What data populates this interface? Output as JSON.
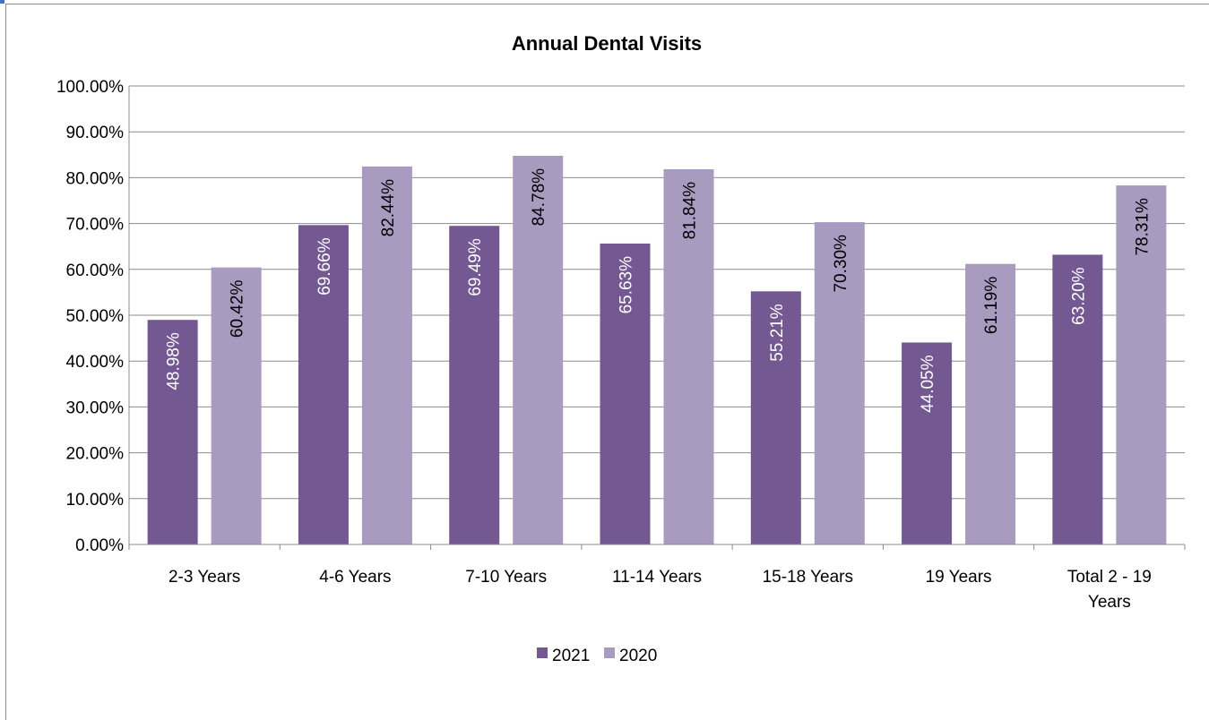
{
  "chart_data": {
    "type": "bar",
    "title": "Annual Dental Visits",
    "categories": [
      [
        "2-3 Years"
      ],
      [
        "4-6 Years"
      ],
      [
        "7-10 Years"
      ],
      [
        "11-14 Years"
      ],
      [
        "15-18 Years"
      ],
      [
        "19 Years"
      ],
      [
        "Total 2 - 19",
        "Years"
      ]
    ],
    "series": [
      {
        "name": "2021",
        "color": "#735891",
        "label_color": "#ffffff",
        "values": [
          48.98,
          69.66,
          69.49,
          65.63,
          55.21,
          44.05,
          63.2
        ],
        "labels": [
          "48.98%",
          "69.66%",
          "69.49%",
          "65.63%",
          "55.21%",
          "44.05%",
          "63.20%"
        ]
      },
      {
        "name": "2020",
        "color": "#a99bc0",
        "label_color": "#000000",
        "values": [
          60.42,
          82.44,
          84.78,
          81.84,
          70.3,
          61.19,
          78.31
        ],
        "labels": [
          "60.42%",
          "82.44%",
          "84.78%",
          "81.84%",
          "70.30%",
          "61.19%",
          "78.31%"
        ]
      }
    ],
    "ylim": [
      0,
      100
    ],
    "yticks": [
      "0.00%",
      "10.00%",
      "20.00%",
      "30.00%",
      "40.00%",
      "50.00%",
      "60.00%",
      "70.00%",
      "80.00%",
      "90.00%",
      "100.00%"
    ],
    "xlabel": "",
    "ylabel": "",
    "grid": true,
    "legend": "bottom",
    "gridline_color": "#8c8c8c"
  }
}
